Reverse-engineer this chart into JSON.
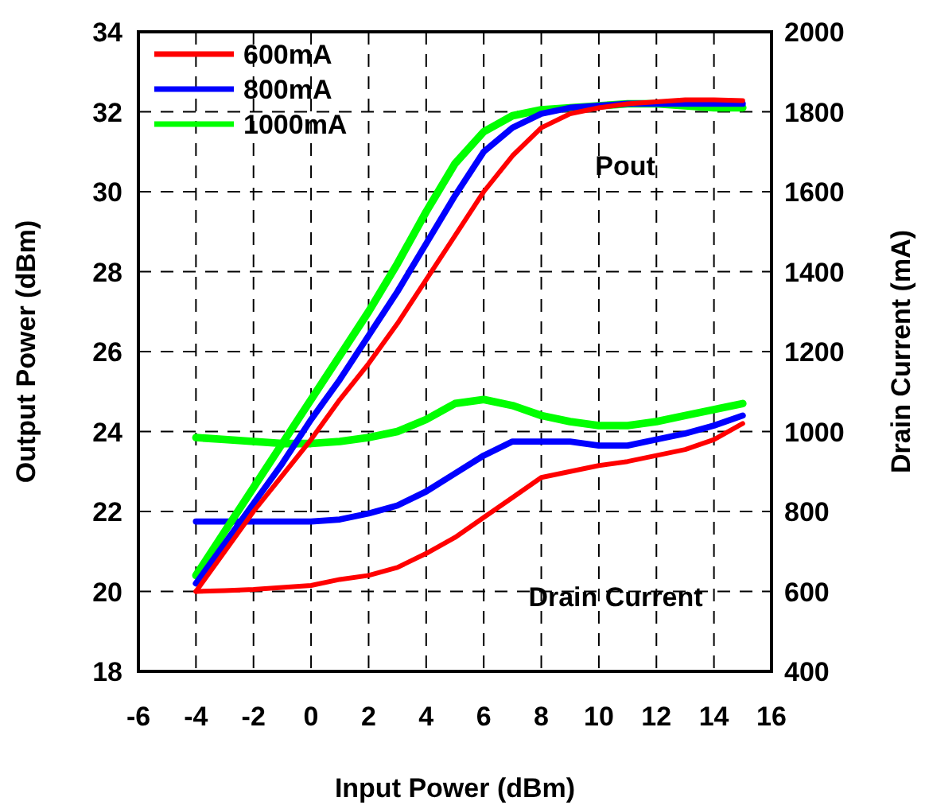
{
  "chart_data": {
    "type": "line",
    "xlabel": "Input Power (dBm)",
    "ylabel": "Output Power (dBm)",
    "y2label": "Drain Current (mA)",
    "x": [
      -4,
      -3,
      -2,
      -1,
      0,
      1,
      2,
      3,
      4,
      5,
      6,
      7,
      8,
      9,
      10,
      11,
      12,
      13,
      14,
      15
    ],
    "xlim": [
      -6,
      16
    ],
    "xticks": [
      -6,
      -4,
      -2,
      0,
      2,
      4,
      6,
      8,
      10,
      12,
      14,
      16
    ],
    "ylim": [
      18,
      34
    ],
    "yticks": [
      18,
      20,
      22,
      24,
      26,
      28,
      30,
      32,
      34
    ],
    "y2lim": [
      400,
      2000
    ],
    "y2ticks": [
      400,
      600,
      800,
      1000,
      1200,
      1400,
      1600,
      1800,
      2000
    ],
    "grid": true,
    "legend": "top left",
    "line_style": "solid",
    "marker": "none",
    "annotations": [
      "Pout",
      "Drain Current"
    ],
    "series": [
      {
        "name": "600mA",
        "color": "#ff0000",
        "values": [
          20.0,
          21.0,
          22.0,
          22.9,
          23.8,
          24.8,
          25.7,
          26.7,
          27.8,
          28.9,
          30.0,
          30.9,
          31.6,
          31.95,
          32.1,
          32.2,
          32.25,
          32.3,
          32.3,
          32.28
        ]
      },
      {
        "name": "800mA",
        "color": "#0000ff",
        "values": [
          20.2,
          21.2,
          22.2,
          23.2,
          24.3,
          25.3,
          26.4,
          27.5,
          28.7,
          29.9,
          31.0,
          31.6,
          31.95,
          32.1,
          32.15,
          32.2,
          32.2,
          32.2,
          32.2,
          32.2
        ]
      },
      {
        "name": "1000mA",
        "color": "#00ff00",
        "values": [
          20.4,
          21.5,
          22.6,
          23.7,
          24.8,
          25.9,
          27.0,
          28.2,
          29.5,
          30.7,
          31.5,
          31.9,
          32.05,
          32.1,
          32.15,
          32.2,
          32.2,
          32.15,
          32.1,
          32.1
        ]
      },
      {
        "color": "#ff0000",
        "axis": "y2",
        "values": [
          600,
          602,
          605,
          610,
          615,
          630,
          640,
          660,
          695,
          735,
          785,
          835,
          885,
          900,
          915,
          925,
          940,
          955,
          980,
          1020
        ]
      },
      {
        "color": "#0000ff",
        "axis": "y2",
        "values": [
          775,
          775,
          775,
          775,
          775,
          780,
          795,
          815,
          850,
          895,
          940,
          975,
          975,
          975,
          965,
          965,
          980,
          995,
          1015,
          1040
        ]
      },
      {
        "color": "#00ff00",
        "axis": "y2",
        "values": [
          985,
          980,
          975,
          970,
          970,
          975,
          985,
          1000,
          1030,
          1070,
          1080,
          1065,
          1040,
          1025,
          1015,
          1015,
          1025,
          1040,
          1055,
          1070
        ]
      }
    ]
  }
}
